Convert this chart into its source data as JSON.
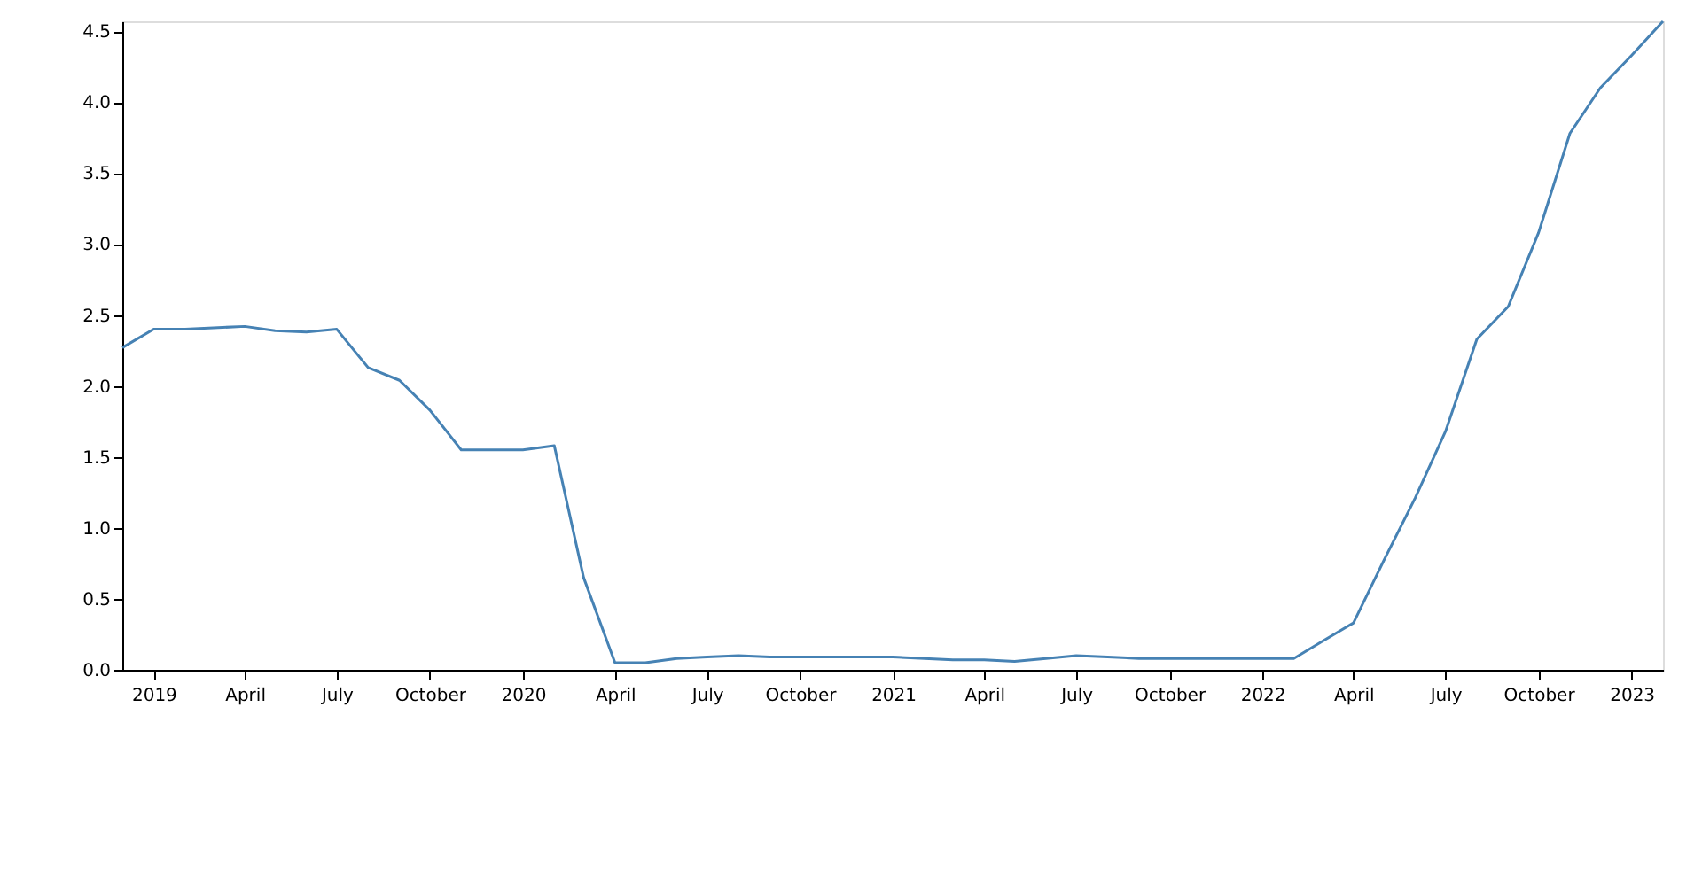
{
  "chart_data": {
    "type": "line",
    "x": [
      "2018-12",
      "2019-01",
      "2019-02",
      "2019-03",
      "2019-04",
      "2019-05",
      "2019-06",
      "2019-07",
      "2019-08",
      "2019-09",
      "2019-10",
      "2019-11",
      "2019-12",
      "2020-01",
      "2020-02",
      "2020-03",
      "2020-04",
      "2020-05",
      "2020-06",
      "2020-07",
      "2020-08",
      "2020-09",
      "2020-10",
      "2020-11",
      "2020-12",
      "2021-01",
      "2021-02",
      "2021-03",
      "2021-04",
      "2021-05",
      "2021-06",
      "2021-07",
      "2021-08",
      "2021-09",
      "2021-10",
      "2021-11",
      "2021-12",
      "2022-01",
      "2022-02",
      "2022-03",
      "2022-04",
      "2022-05",
      "2022-06",
      "2022-07",
      "2022-08",
      "2022-09",
      "2022-10",
      "2022-11",
      "2022-12",
      "2023-01",
      "2023-02"
    ],
    "series": [
      {
        "color": "#4682b4",
        "values": [
          2.27,
          2.4,
          2.4,
          2.41,
          2.42,
          2.39,
          2.38,
          2.4,
          2.13,
          2.04,
          1.83,
          1.55,
          1.55,
          1.55,
          1.58,
          0.65,
          0.05,
          0.05,
          0.08,
          0.09,
          0.1,
          0.09,
          0.09,
          0.09,
          0.09,
          0.09,
          0.08,
          0.07,
          0.07,
          0.06,
          0.08,
          0.1,
          0.09,
          0.08,
          0.08,
          0.08,
          0.08,
          0.08,
          0.08,
          0.2,
          0.33,
          0.77,
          1.21,
          1.68,
          2.33,
          2.56,
          3.08,
          3.78,
          4.1,
          4.33,
          4.57
        ]
      }
    ],
    "xlim": [
      "2018-12",
      "2023-02"
    ],
    "xticks": [
      {
        "value": "2019-01",
        "label": "2019"
      },
      {
        "value": "2019-04",
        "label": "April"
      },
      {
        "value": "2019-07",
        "label": "July"
      },
      {
        "value": "2019-10",
        "label": "October"
      },
      {
        "value": "2020-01",
        "label": "2020"
      },
      {
        "value": "2020-04",
        "label": "April"
      },
      {
        "value": "2020-07",
        "label": "July"
      },
      {
        "value": "2020-10",
        "label": "October"
      },
      {
        "value": "2021-01",
        "label": "2021"
      },
      {
        "value": "2021-04",
        "label": "April"
      },
      {
        "value": "2021-07",
        "label": "July"
      },
      {
        "value": "2021-10",
        "label": "October"
      },
      {
        "value": "2022-01",
        "label": "2022"
      },
      {
        "value": "2022-04",
        "label": "April"
      },
      {
        "value": "2022-07",
        "label": "July"
      },
      {
        "value": "2022-10",
        "label": "October"
      },
      {
        "value": "2023-01",
        "label": "2023"
      }
    ],
    "ylim": [
      0,
      4.57
    ],
    "yticks": [
      {
        "value": 0,
        "label": "0.0"
      },
      {
        "value": 0.5,
        "label": "0.5"
      },
      {
        "value": 1,
        "label": "1.0"
      },
      {
        "value": 1.5,
        "label": "1.5"
      },
      {
        "value": 2,
        "label": "2.0"
      },
      {
        "value": 2.5,
        "label": "2.5"
      },
      {
        "value": 3,
        "label": "3.0"
      },
      {
        "value": 3.5,
        "label": "3.5"
      },
      {
        "value": 4,
        "label": "4.0"
      },
      {
        "value": 4.5,
        "label": "4.5"
      }
    ],
    "grid": false
  }
}
